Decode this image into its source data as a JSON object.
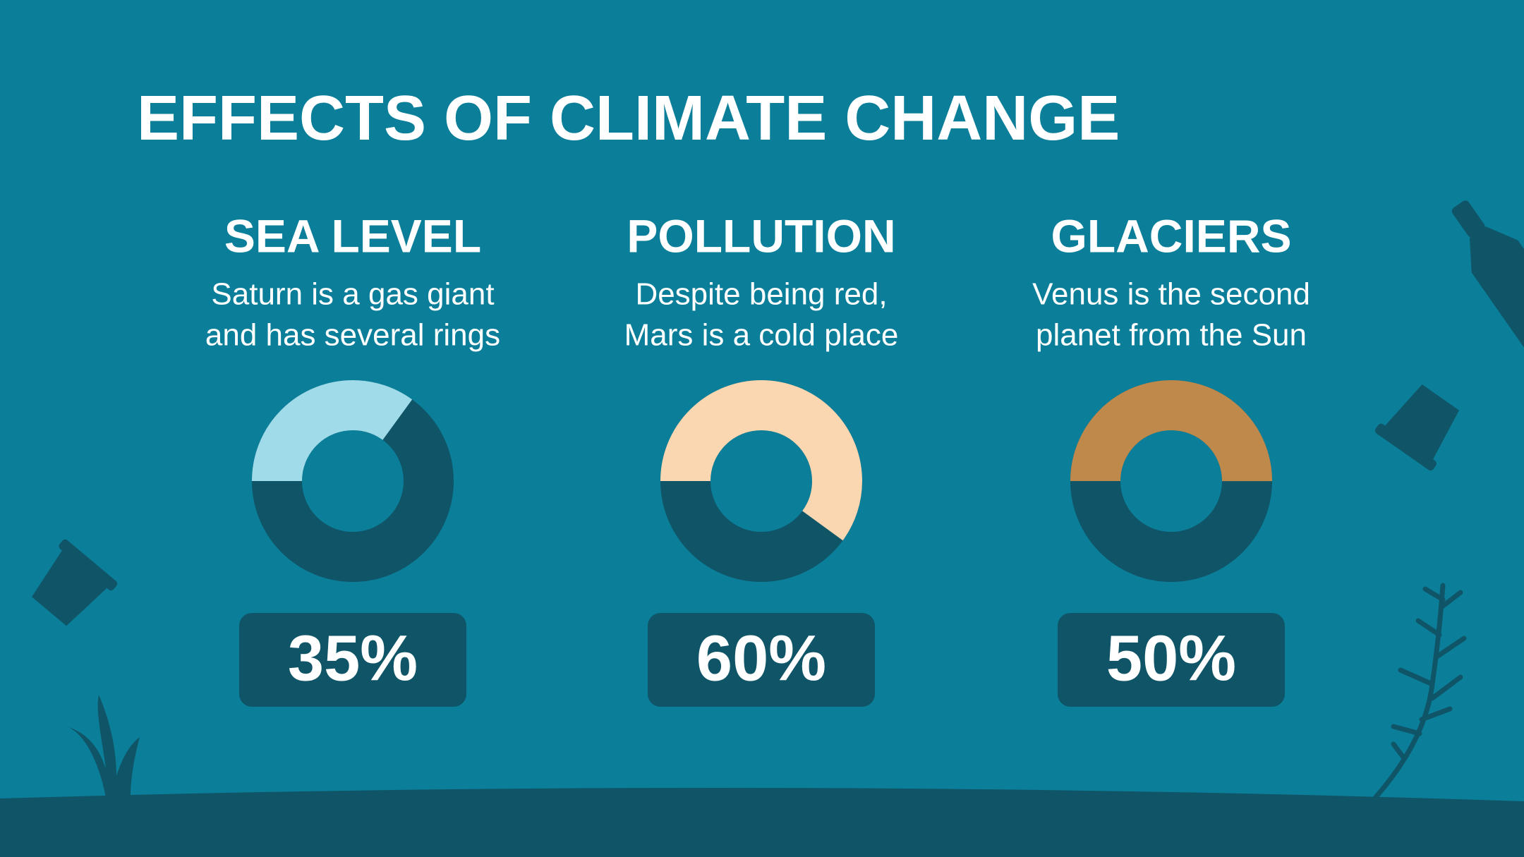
{
  "title": "EFFECTS OF CLIMATE CHANGE",
  "chart_data": [
    {
      "type": "donut",
      "title": "SEA LEVEL",
      "description": [
        "Saturn is a gas giant",
        "and has several rings"
      ],
      "values": [
        35
      ],
      "value_labels": [
        "35%"
      ],
      "color": "#a0dbe9"
    },
    {
      "type": "donut",
      "title": "POLLUTION",
      "description": [
        "Despite being red,",
        "Mars is a cold place"
      ],
      "values": [
        60
      ],
      "value_labels": [
        "60%"
      ],
      "color": "#fad7b1"
    },
    {
      "type": "donut",
      "title": "GLACIERS",
      "description": [
        "Venus is the second",
        "planet from the Sun"
      ],
      "values": [
        50
      ],
      "value_labels": [
        "50%"
      ],
      "color": "#bf894c"
    }
  ]
}
